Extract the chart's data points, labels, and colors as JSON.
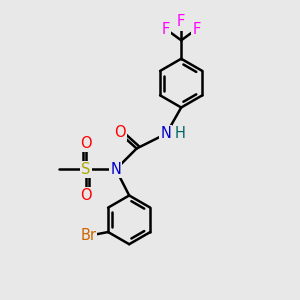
{
  "bg_color": "#e8e8e8",
  "bond_color": "#000000",
  "bond_width": 1.8,
  "atom_colors": {
    "F": "#ff00ff",
    "O": "#ff0000",
    "N": "#0000cc",
    "H": "#006666",
    "S": "#aaaa00",
    "Br": "#cc6600",
    "C": "#000000"
  },
  "font_size": 10.5
}
